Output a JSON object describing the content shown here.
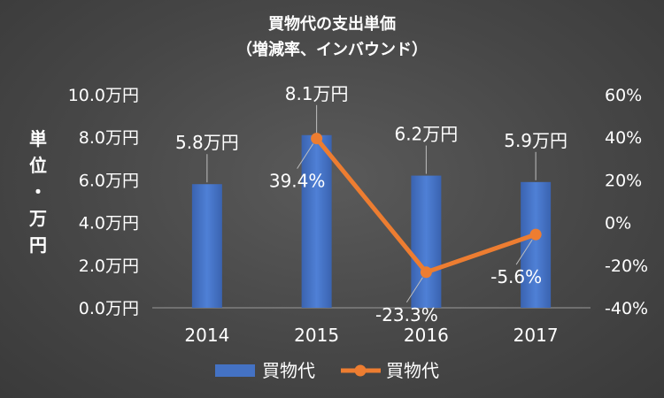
{
  "chart_data": {
    "type": "bar+line",
    "title": "買物代の支出単価",
    "subtitle": "（増減率、インバウンド）",
    "ylabel": "単位・万円",
    "categories": [
      "2014",
      "2015",
      "2016",
      "2017"
    ],
    "series": [
      {
        "name": "買物代",
        "type": "bar",
        "axis": "left",
        "values": [
          5.8,
          8.1,
          6.2,
          5.9
        ],
        "labels": [
          "5.8万円",
          "8.1万円",
          "6.2万円",
          "5.9万円"
        ],
        "color": "#4472C4"
      },
      {
        "name": "買物代",
        "type": "line",
        "axis": "right",
        "values": [
          null,
          39.4,
          -23.3,
          -5.6
        ],
        "labels": [
          "",
          "39.4%",
          "-23.3%",
          "-5.6%"
        ],
        "color": "#ED7D31"
      }
    ],
    "left_axis": {
      "ylim": [
        0,
        10
      ],
      "ticks": [
        {
          "value": 0,
          "label": "0.0万円"
        },
        {
          "value": 2,
          "label": "2.0万円"
        },
        {
          "value": 4,
          "label": "4.0万円"
        },
        {
          "value": 6,
          "label": "6.0万円"
        },
        {
          "value": 8,
          "label": "8.0万円"
        },
        {
          "value": 10,
          "label": "10.0万円"
        }
      ]
    },
    "right_axis": {
      "ylim": [
        -40,
        60
      ],
      "ticks": [
        {
          "value": -40,
          "label": "-40%"
        },
        {
          "value": -20,
          "label": "-20%"
        },
        {
          "value": 0,
          "label": "0%"
        },
        {
          "value": 20,
          "label": "20%"
        },
        {
          "value": 40,
          "label": "40%"
        },
        {
          "value": 60,
          "label": "60%"
        }
      ]
    },
    "grid": false,
    "legend_position": "bottom"
  }
}
